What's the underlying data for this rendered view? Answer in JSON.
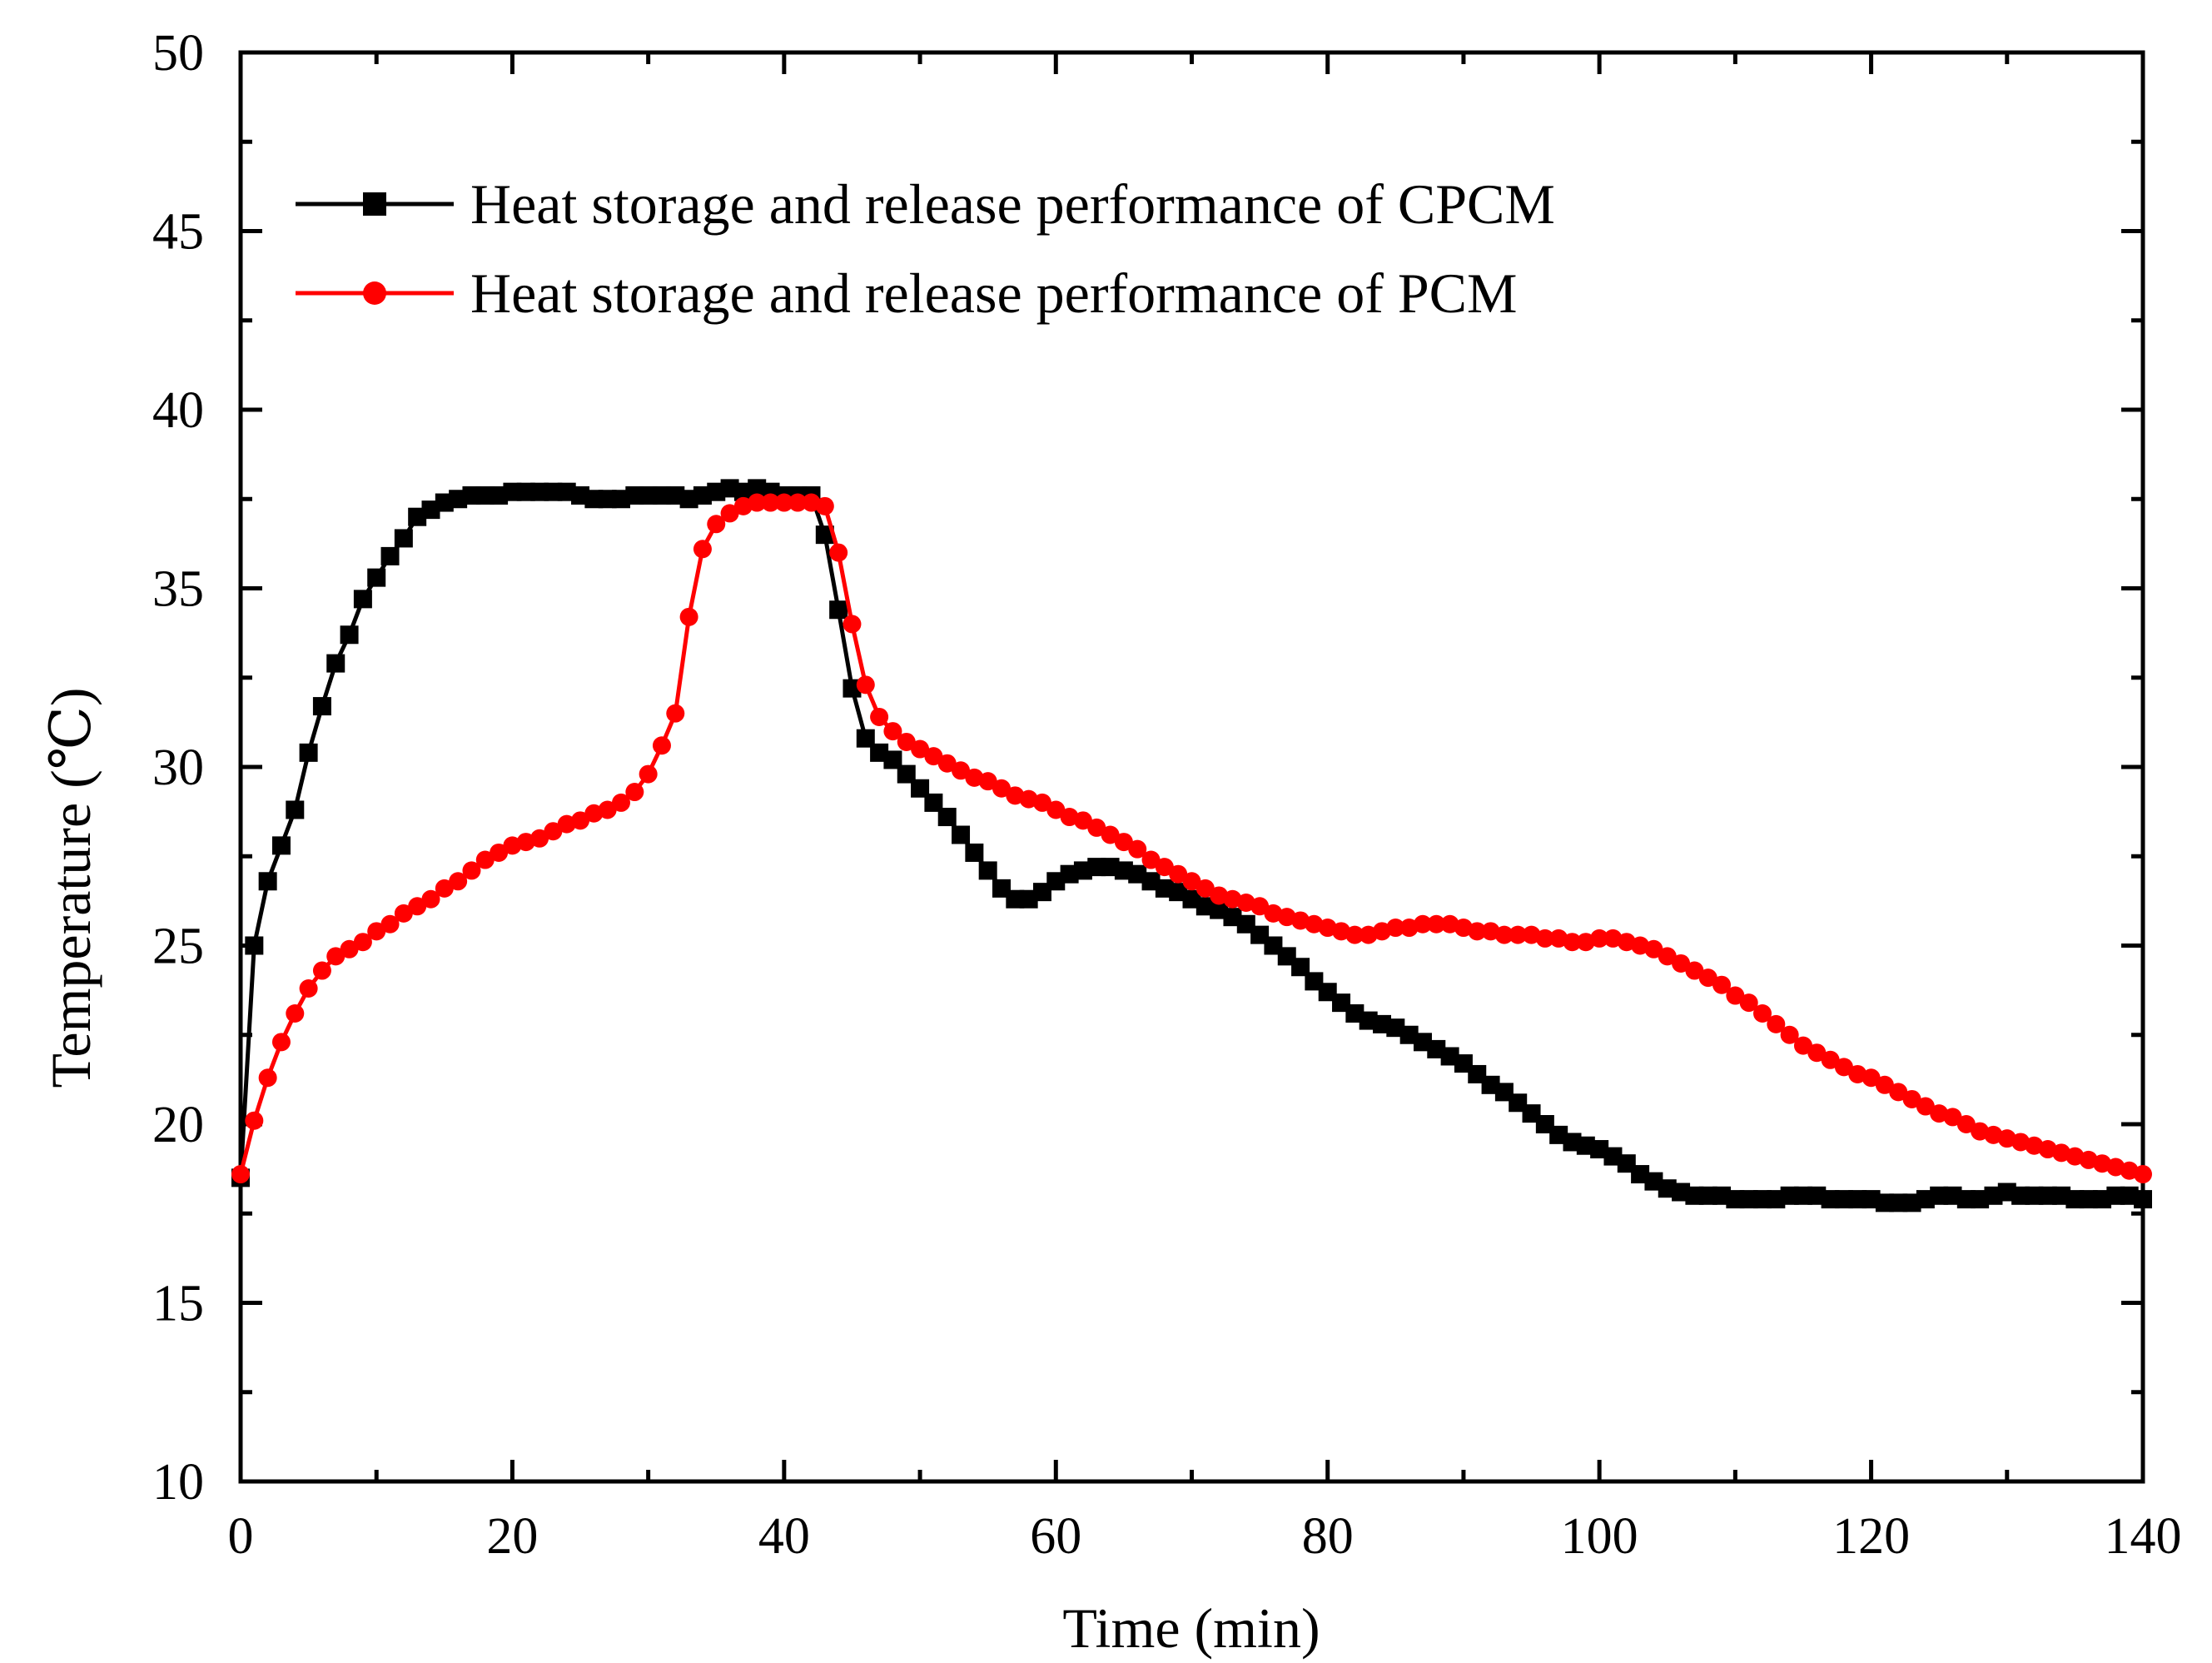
{
  "chart_data": {
    "type": "line",
    "title": "",
    "xlabel": "Time (min)",
    "ylabel": "Temperature (℃)",
    "xlim": [
      0,
      140
    ],
    "ylim": [
      10,
      50
    ],
    "xticks": [
      0,
      20,
      40,
      60,
      80,
      100,
      120,
      140
    ],
    "yticks": [
      10,
      15,
      20,
      25,
      30,
      35,
      40,
      45,
      50
    ],
    "x_tick_labels": [
      "0",
      "20",
      "40",
      "60",
      "80",
      "100",
      "120",
      "140"
    ],
    "y_tick_labels": [
      "10",
      "15",
      "20",
      "25",
      "30",
      "35",
      "40",
      "45",
      "50"
    ],
    "grid": false,
    "legend_position": "top-left",
    "series": [
      {
        "name": "Heat storage and release performance of CPCM",
        "color": "#000000",
        "marker": "square",
        "points": [
          [
            0,
            18.5
          ],
          [
            1,
            25
          ],
          [
            2,
            26.8
          ],
          [
            3,
            27.8
          ],
          [
            4,
            28.8
          ],
          [
            5,
            30.4
          ],
          [
            6,
            31.7
          ],
          [
            7,
            32.9
          ],
          [
            8,
            33.7
          ],
          [
            9,
            34.7
          ],
          [
            10,
            35.3
          ],
          [
            11,
            35.9
          ],
          [
            12,
            36.4
          ],
          [
            13,
            37.0
          ],
          [
            14,
            37.2
          ],
          [
            15,
            37.4
          ],
          [
            16,
            37.5
          ],
          [
            17,
            37.6
          ],
          [
            18,
            37.6
          ],
          [
            19,
            37.6
          ],
          [
            20,
            37.7
          ],
          [
            21,
            37.7
          ],
          [
            22,
            37.7
          ],
          [
            23,
            37.7
          ],
          [
            24,
            37.7
          ],
          [
            25,
            37.6
          ],
          [
            26,
            37.5
          ],
          [
            27,
            37.5
          ],
          [
            28,
            37.5
          ],
          [
            29,
            37.6
          ],
          [
            30,
            37.6
          ],
          [
            31,
            37.6
          ],
          [
            32,
            37.6
          ],
          [
            33,
            37.5
          ],
          [
            34,
            37.6
          ],
          [
            35,
            37.7
          ],
          [
            36,
            37.8
          ],
          [
            37,
            37.7
          ],
          [
            38,
            37.8
          ],
          [
            39,
            37.7
          ],
          [
            40,
            37.6
          ],
          [
            41,
            37.6
          ],
          [
            42,
            37.6
          ],
          [
            43,
            36.5
          ],
          [
            44,
            34.4
          ],
          [
            45,
            32.2
          ],
          [
            46,
            30.8
          ],
          [
            47,
            30.4
          ],
          [
            48,
            30.2
          ],
          [
            49,
            29.8
          ],
          [
            50,
            29.4
          ],
          [
            51,
            29.0
          ],
          [
            52,
            28.6
          ],
          [
            53,
            28.1
          ],
          [
            54,
            27.6
          ],
          [
            55,
            27.1
          ],
          [
            56,
            26.6
          ],
          [
            57,
            26.3
          ],
          [
            58,
            26.3
          ],
          [
            59,
            26.5
          ],
          [
            60,
            26.8
          ],
          [
            61,
            27.0
          ],
          [
            62,
            27.1
          ],
          [
            63,
            27.2
          ],
          [
            64,
            27.2
          ],
          [
            65,
            27.1
          ],
          [
            66,
            27.0
          ],
          [
            67,
            26.8
          ],
          [
            68,
            26.6
          ],
          [
            69,
            26.5
          ],
          [
            70,
            26.3
          ],
          [
            71,
            26.1
          ],
          [
            72,
            26.0
          ],
          [
            73,
            25.8
          ],
          [
            74,
            25.6
          ],
          [
            75,
            25.3
          ],
          [
            76,
            25.0
          ],
          [
            77,
            24.7
          ],
          [
            78,
            24.4
          ],
          [
            79,
            24.0
          ],
          [
            80,
            23.7
          ],
          [
            81,
            23.4
          ],
          [
            82,
            23.1
          ],
          [
            83,
            22.9
          ],
          [
            84,
            22.8
          ],
          [
            85,
            22.7
          ],
          [
            86,
            22.5
          ],
          [
            87,
            22.3
          ],
          [
            88,
            22.1
          ],
          [
            89,
            21.9
          ],
          [
            90,
            21.7
          ],
          [
            91,
            21.4
          ],
          [
            92,
            21.1
          ],
          [
            93,
            20.9
          ],
          [
            94,
            20.6
          ],
          [
            95,
            20.3
          ],
          [
            96,
            20.0
          ],
          [
            97,
            19.7
          ],
          [
            98,
            19.5
          ],
          [
            99,
            19.4
          ],
          [
            100,
            19.3
          ],
          [
            101,
            19.1
          ],
          [
            102,
            18.9
          ],
          [
            103,
            18.6
          ],
          [
            104,
            18.4
          ],
          [
            105,
            18.2
          ],
          [
            106,
            18.1
          ],
          [
            107,
            18.0
          ],
          [
            108,
            18.0
          ],
          [
            109,
            18.0
          ],
          [
            110,
            17.9
          ],
          [
            111,
            17.9
          ],
          [
            112,
            17.9
          ],
          [
            113,
            17.9
          ],
          [
            114,
            18.0
          ],
          [
            115,
            18.0
          ],
          [
            116,
            18.0
          ],
          [
            117,
            17.9
          ],
          [
            118,
            17.9
          ],
          [
            119,
            17.9
          ],
          [
            120,
            17.9
          ],
          [
            121,
            17.8
          ],
          [
            122,
            17.8
          ],
          [
            123,
            17.8
          ],
          [
            124,
            17.9
          ],
          [
            125,
            18.0
          ],
          [
            126,
            18.0
          ],
          [
            127,
            17.9
          ],
          [
            128,
            17.9
          ],
          [
            129,
            18.0
          ],
          [
            130,
            18.1
          ],
          [
            131,
            18.0
          ],
          [
            132,
            18.0
          ],
          [
            133,
            18.0
          ],
          [
            134,
            18.0
          ],
          [
            135,
            17.9
          ],
          [
            136,
            17.9
          ],
          [
            137,
            17.9
          ],
          [
            138,
            18.0
          ],
          [
            139,
            18.0
          ],
          [
            140,
            17.9
          ]
        ]
      },
      {
        "name": "Heat storage and release performance of PCM",
        "color": "#ff0000",
        "marker": "circle",
        "points": [
          [
            0,
            18.6
          ],
          [
            1,
            20.1
          ],
          [
            2,
            21.3
          ],
          [
            3,
            22.3
          ],
          [
            4,
            23.1
          ],
          [
            5,
            23.8
          ],
          [
            6,
            24.3
          ],
          [
            7,
            24.7
          ],
          [
            8,
            24.9
          ],
          [
            9,
            25.1
          ],
          [
            10,
            25.4
          ],
          [
            11,
            25.6
          ],
          [
            12,
            25.9
          ],
          [
            13,
            26.1
          ],
          [
            14,
            26.3
          ],
          [
            15,
            26.6
          ],
          [
            16,
            26.8
          ],
          [
            17,
            27.1
          ],
          [
            18,
            27.4
          ],
          [
            19,
            27.6
          ],
          [
            20,
            27.8
          ],
          [
            21,
            27.9
          ],
          [
            22,
            28.0
          ],
          [
            23,
            28.2
          ],
          [
            24,
            28.4
          ],
          [
            25,
            28.5
          ],
          [
            26,
            28.7
          ],
          [
            27,
            28.8
          ],
          [
            28,
            29.0
          ],
          [
            29,
            29.3
          ],
          [
            30,
            29.8
          ],
          [
            31,
            30.6
          ],
          [
            32,
            31.5
          ],
          [
            33,
            34.2
          ],
          [
            34,
            36.1
          ],
          [
            35,
            36.8
          ],
          [
            36,
            37.1
          ],
          [
            37,
            37.3
          ],
          [
            38,
            37.4
          ],
          [
            39,
            37.4
          ],
          [
            40,
            37.4
          ],
          [
            41,
            37.4
          ],
          [
            42,
            37.4
          ],
          [
            43,
            37.3
          ],
          [
            44,
            36.0
          ],
          [
            45,
            34.0
          ],
          [
            46,
            32.3
          ],
          [
            47,
            31.4
          ],
          [
            48,
            31.0
          ],
          [
            49,
            30.7
          ],
          [
            50,
            30.5
          ],
          [
            51,
            30.3
          ],
          [
            52,
            30.1
          ],
          [
            53,
            29.9
          ],
          [
            54,
            29.7
          ],
          [
            55,
            29.6
          ],
          [
            56,
            29.4
          ],
          [
            57,
            29.2
          ],
          [
            58,
            29.1
          ],
          [
            59,
            29.0
          ],
          [
            60,
            28.8
          ],
          [
            61,
            28.6
          ],
          [
            62,
            28.5
          ],
          [
            63,
            28.3
          ],
          [
            64,
            28.1
          ],
          [
            65,
            27.9
          ],
          [
            66,
            27.7
          ],
          [
            67,
            27.4
          ],
          [
            68,
            27.2
          ],
          [
            69,
            27.0
          ],
          [
            70,
            26.8
          ],
          [
            71,
            26.6
          ],
          [
            72,
            26.4
          ],
          [
            73,
            26.3
          ],
          [
            74,
            26.2
          ],
          [
            75,
            26.1
          ],
          [
            76,
            25.9
          ],
          [
            77,
            25.8
          ],
          [
            78,
            25.7
          ],
          [
            79,
            25.6
          ],
          [
            80,
            25.5
          ],
          [
            81,
            25.4
          ],
          [
            82,
            25.3
          ],
          [
            83,
            25.3
          ],
          [
            84,
            25.4
          ],
          [
            85,
            25.5
          ],
          [
            86,
            25.5
          ],
          [
            87,
            25.6
          ],
          [
            88,
            25.6
          ],
          [
            89,
            25.6
          ],
          [
            90,
            25.5
          ],
          [
            91,
            25.4
          ],
          [
            92,
            25.4
          ],
          [
            93,
            25.3
          ],
          [
            94,
            25.3
          ],
          [
            95,
            25.3
          ],
          [
            96,
            25.2
          ],
          [
            97,
            25.2
          ],
          [
            98,
            25.1
          ],
          [
            99,
            25.1
          ],
          [
            100,
            25.2
          ],
          [
            101,
            25.2
          ],
          [
            102,
            25.1
          ],
          [
            103,
            25.0
          ],
          [
            104,
            24.9
          ],
          [
            105,
            24.7
          ],
          [
            106,
            24.5
          ],
          [
            107,
            24.3
          ],
          [
            108,
            24.1
          ],
          [
            109,
            23.9
          ],
          [
            110,
            23.6
          ],
          [
            111,
            23.4
          ],
          [
            112,
            23.1
          ],
          [
            113,
            22.8
          ],
          [
            114,
            22.5
          ],
          [
            115,
            22.2
          ],
          [
            116,
            22.0
          ],
          [
            117,
            21.8
          ],
          [
            118,
            21.6
          ],
          [
            119,
            21.4
          ],
          [
            120,
            21.3
          ],
          [
            121,
            21.1
          ],
          [
            122,
            20.9
          ],
          [
            123,
            20.7
          ],
          [
            124,
            20.5
          ],
          [
            125,
            20.3
          ],
          [
            126,
            20.2
          ],
          [
            127,
            20.0
          ],
          [
            128,
            19.8
          ],
          [
            129,
            19.7
          ],
          [
            130,
            19.6
          ],
          [
            131,
            19.5
          ],
          [
            132,
            19.4
          ],
          [
            133,
            19.3
          ],
          [
            134,
            19.2
          ],
          [
            135,
            19.1
          ],
          [
            136,
            19.0
          ],
          [
            137,
            18.9
          ],
          [
            138,
            18.8
          ],
          [
            139,
            18.7
          ],
          [
            140,
            18.6
          ]
        ]
      }
    ]
  }
}
